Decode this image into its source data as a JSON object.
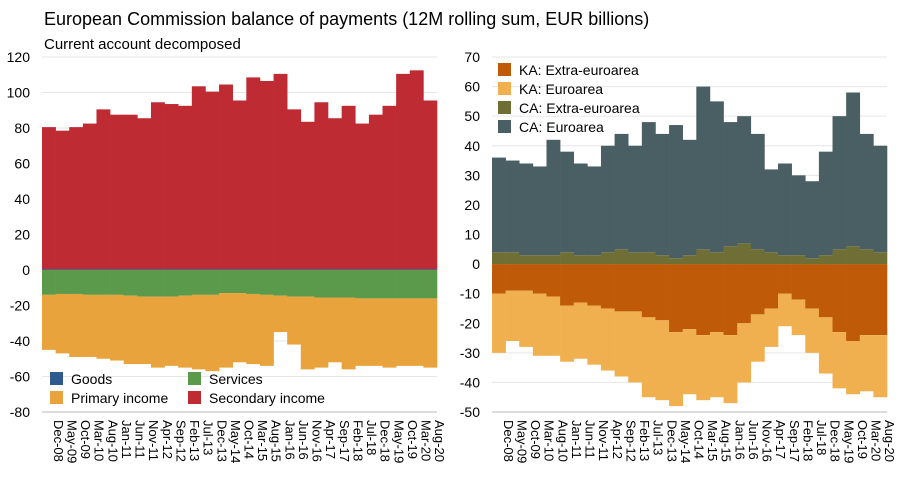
{
  "title": "European Commission balance of payments (12M rolling sum, EUR billions)",
  "chart_data": [
    {
      "type": "bar",
      "stacked": true,
      "subtitle": "Current account decomposed",
      "ylim": [
        -80,
        120
      ],
      "yticks": [
        -80,
        -60,
        -40,
        -20,
        0,
        20,
        40,
        60,
        80,
        100,
        120
      ],
      "grid": true,
      "legend": "bottom-left",
      "categories": [
        "Dec-08",
        "May-09",
        "Oct-09",
        "Mar-10",
        "Aug-10",
        "Jan-11",
        "Jun-11",
        "Nov-11",
        "Apr-12",
        "Sep-12",
        "Feb-13",
        "Jul-13",
        "Dec-13",
        "May-14",
        "Oct-14",
        "Mar-15",
        "Aug-15",
        "Jan-16",
        "Jun-16",
        "Nov-16",
        "Apr-17",
        "Sep-17",
        "Feb-18",
        "Jul-18",
        "Dec-18",
        "May-19",
        "Oct-19",
        "Mar-20",
        "Aug-20"
      ],
      "series": [
        {
          "name": "Goods",
          "color": "#2e5a8e",
          "values": [
            0.5,
            0.5,
            0.5,
            0.5,
            0.5,
            0.5,
            0.5,
            0.5,
            0.5,
            0.5,
            0.5,
            0.5,
            0.5,
            0.5,
            0.5,
            0.5,
            0.5,
            0.5,
            0.5,
            0.5,
            0.5,
            0.5,
            0.5,
            0.5,
            0.5,
            0.5,
            0.5,
            0.5,
            0.5
          ]
        },
        {
          "name": "Services",
          "color": "#5a9a4a",
          "values": [
            -14,
            -13.5,
            -13.5,
            -14,
            -14,
            -14,
            -14.5,
            -15,
            -15,
            -15,
            -14.5,
            -14,
            -14,
            -13,
            -13,
            -13.5,
            -14,
            -14.5,
            -15,
            -15,
            -15.5,
            -15.5,
            -15.5,
            -16,
            -16,
            -16,
            -16,
            -16,
            -16
          ]
        },
        {
          "name": "Primary income",
          "color": "#e8a33c",
          "values": [
            -31,
            -33.5,
            -35.5,
            -35,
            -36,
            -37,
            -38.5,
            -38,
            -40,
            -39,
            -40.5,
            -42,
            -43,
            -42,
            -39,
            -39.5,
            -40,
            -20.5,
            -27,
            -41,
            -39.5,
            -36.5,
            -40.5,
            -38,
            -38,
            -39,
            -38,
            -38,
            -39
          ]
        },
        {
          "name": "Secondary income",
          "color": "#be2b32",
          "values": [
            80,
            78,
            80,
            82,
            90,
            87,
            87,
            85,
            94,
            93,
            92,
            103,
            100,
            104,
            95,
            108,
            106,
            110,
            90,
            83,
            94,
            85,
            92,
            82,
            87,
            92,
            110,
            112,
            95
          ]
        }
      ]
    },
    {
      "type": "bar",
      "stacked": true,
      "ylim": [
        -50,
        70
      ],
      "yticks": [
        -50,
        -40,
        -30,
        -20,
        -10,
        0,
        10,
        20,
        30,
        40,
        50,
        60,
        70
      ],
      "grid": true,
      "legend": "top-left",
      "categories": [
        "Dec-08",
        "May-09",
        "Oct-09",
        "Mar-10",
        "Aug-10",
        "Jan-11",
        "Jun-11",
        "Nov-11",
        "Apr-12",
        "Sep-12",
        "Feb-13",
        "Jul-13",
        "Dec-13",
        "May-14",
        "Oct-14",
        "Mar-15",
        "Aug-15",
        "Jan-16",
        "Jun-16",
        "Nov-16",
        "Apr-17",
        "Sep-17",
        "Feb-18",
        "Jul-18",
        "Dec-18",
        "May-19",
        "Oct-19",
        "Mar-20",
        "Aug-20"
      ],
      "series": [
        {
          "name": "KA: Extra-euroarea",
          "color": "#bf5a08",
          "values": [
            -10,
            -9,
            -9,
            -10,
            -11,
            -14,
            -13,
            -14,
            -15,
            -16,
            -16,
            -18,
            -19,
            -23,
            -22,
            -24,
            -23,
            -24,
            -20,
            -17,
            -15,
            -10,
            -12,
            -15,
            -18,
            -23,
            -26,
            -24,
            -24
          ]
        },
        {
          "name": "KA: Euroarea",
          "color": "#f0b050",
          "values": [
            -20,
            -17,
            -19,
            -21,
            -20,
            -19,
            -19,
            -20,
            -21,
            -22,
            -24,
            -27,
            -27,
            -25,
            -22,
            -22,
            -22,
            -23,
            -20,
            -16,
            -13,
            -11,
            -12,
            -15,
            -19,
            -19,
            -18,
            -19,
            -21
          ]
        },
        {
          "name": "CA: Extra-euroarea",
          "color": "#6f6f35",
          "values": [
            4,
            4,
            3,
            3,
            3,
            4,
            3,
            3,
            4,
            5,
            4,
            4,
            3,
            2,
            3,
            5,
            4,
            6,
            7,
            5,
            4,
            3,
            3,
            2,
            3,
            5,
            6,
            5,
            4
          ]
        },
        {
          "name": "CA: Euroarea",
          "color": "#4a5f63",
          "values": [
            32,
            31,
            31,
            30,
            39,
            34,
            31,
            30,
            36,
            39,
            36,
            44,
            41,
            45,
            39,
            55,
            51,
            42,
            43,
            39,
            28,
            31,
            27,
            26,
            35,
            45,
            52,
            39,
            36
          ]
        }
      ]
    }
  ]
}
